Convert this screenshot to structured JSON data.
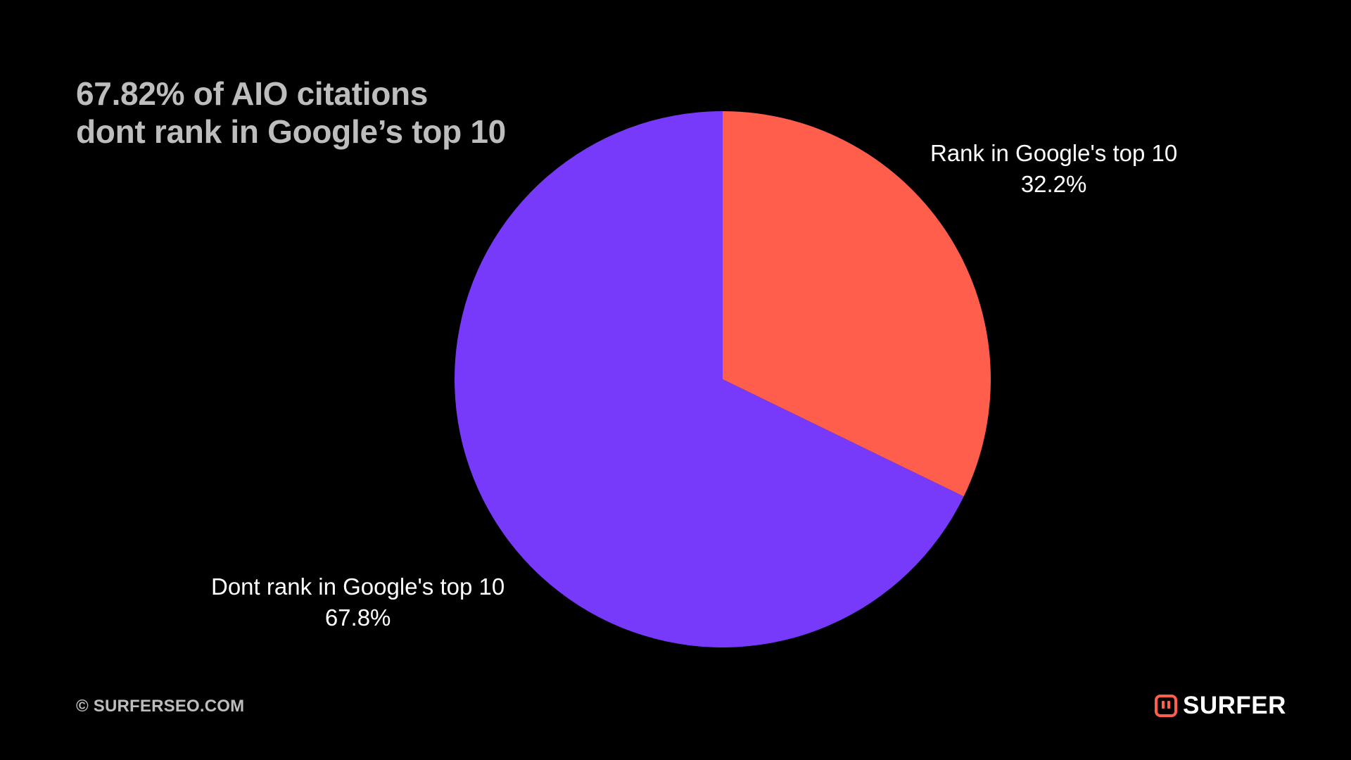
{
  "title": {
    "line1": "67.82% of AIO citations",
    "line2": "dont rank in Google’s top 10"
  },
  "chart_data": {
    "type": "pie",
    "slices": [
      {
        "label": "Rank in Google's top 10",
        "value": 32.2,
        "value_label": "32.2%",
        "color": "#FF5E4D"
      },
      {
        "label": "Dont rank in Google's top 10",
        "value": 67.8,
        "value_label": "67.8%",
        "color": "#783AFA"
      }
    ]
  },
  "footer": {
    "copyright": "© SURFERSEO.COM",
    "brand_name": "SURFER",
    "brand_logo_icon": "surfer-logo-icon",
    "brand_color": "#FF5E4D"
  }
}
